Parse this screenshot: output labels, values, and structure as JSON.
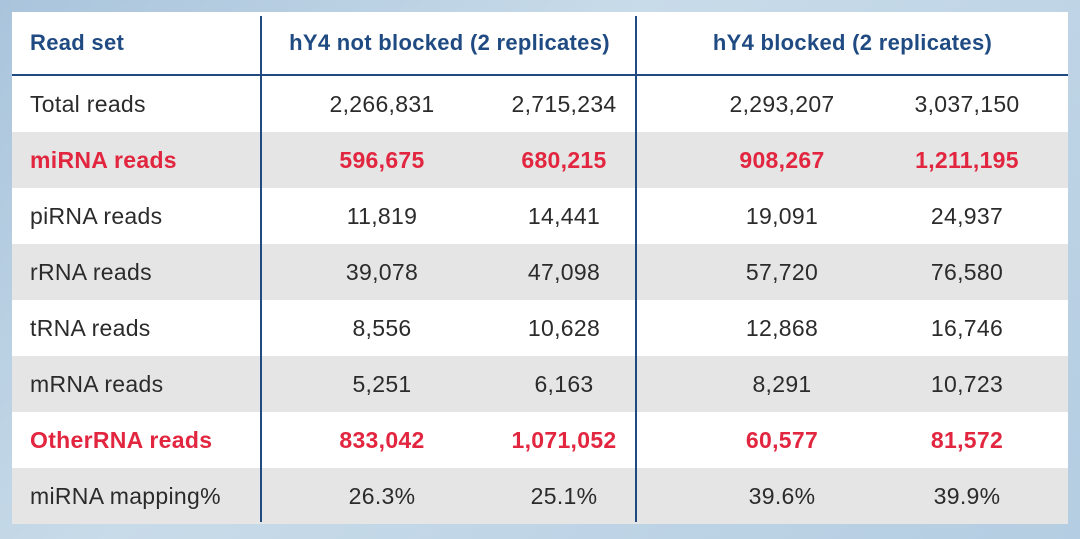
{
  "header": {
    "read_set": "Read set",
    "group_not_blocked": "hY4 not blocked (2 replicates)",
    "group_blocked": "hY4 blocked (2 replicates)"
  },
  "rows": [
    {
      "label": "Total reads",
      "values": [
        "2,266,831",
        "2,715,234",
        "2,293,207",
        "3,037,150"
      ],
      "highlight": false
    },
    {
      "label": "miRNA reads",
      "values": [
        "596,675",
        "680,215",
        "908,267",
        "1,211,195"
      ],
      "highlight": true
    },
    {
      "label": "piRNA reads",
      "values": [
        "11,819",
        "14,441",
        "19,091",
        "24,937"
      ],
      "highlight": false
    },
    {
      "label": "rRNA reads",
      "values": [
        "39,078",
        "47,098",
        "57,720",
        "76,580"
      ],
      "highlight": false
    },
    {
      "label": "tRNA reads",
      "values": [
        "8,556",
        "10,628",
        "12,868",
        "16,746"
      ],
      "highlight": false
    },
    {
      "label": "mRNA reads",
      "values": [
        "5,251",
        "6,163",
        "8,291",
        "10,723"
      ],
      "highlight": false
    },
    {
      "label": "OtherRNA reads",
      "values": [
        "833,042",
        "1,071,052",
        "60,577",
        "81,572"
      ],
      "highlight": true
    },
    {
      "label": "miRNA mapping%",
      "values": [
        "26.3%",
        "25.1%",
        "39.6%",
        "39.9%"
      ],
      "highlight": false
    }
  ],
  "colors": {
    "header_text": "#1f4a82",
    "highlight_text": "#e2263f",
    "shaded_row": "#e5e5e5"
  }
}
